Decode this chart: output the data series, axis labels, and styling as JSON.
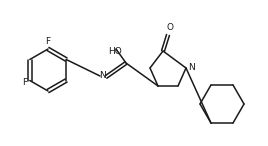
{
  "background": "#ffffff",
  "line_color": "#1a1a1a",
  "line_width": 1.1,
  "font_size": 6.5,
  "labels": {
    "F_top": "F",
    "F_bottom": "F",
    "N_imine": "N",
    "HO": "HO",
    "N_ring": "N",
    "O_carbonyl": "O"
  }
}
